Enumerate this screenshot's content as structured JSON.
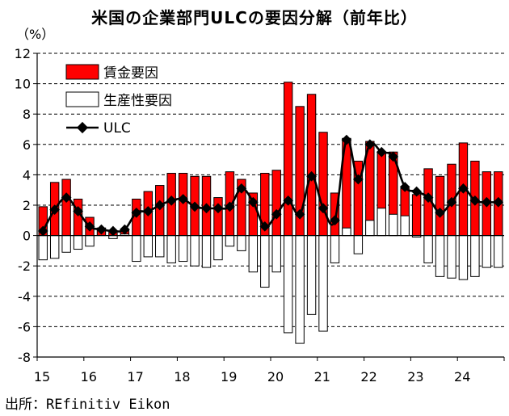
{
  "chart_data": {
    "type": "bar",
    "title": "米国の企業部門ULCの要因分解（前年比）",
    "ylabel": "（%）",
    "ylim": [
      -8,
      12
    ],
    "yticks": [
      -8,
      -6,
      -4,
      -2,
      0,
      2,
      4,
      6,
      8,
      10,
      12
    ],
    "xtick_labels": [
      "15",
      "16",
      "17",
      "18",
      "19",
      "20",
      "21",
      "22",
      "23",
      "24"
    ],
    "source": "出所：REfinitiv Eikon",
    "legend": {
      "wage": "賃金要因",
      "productivity": "生産性要因",
      "ulc": "ULC"
    },
    "colors": {
      "wage": "#ff0000",
      "productivity": "#ffffff",
      "ulc": "#000000",
      "grid": "#000000"
    },
    "categories": [
      "15Q1",
      "15Q2",
      "15Q3",
      "15Q4",
      "16Q1",
      "16Q2",
      "16Q3",
      "16Q4",
      "17Q1",
      "17Q2",
      "17Q3",
      "17Q4",
      "18Q1",
      "18Q2",
      "18Q3",
      "18Q4",
      "19Q1",
      "19Q2",
      "19Q3",
      "19Q4",
      "20Q1",
      "20Q2",
      "20Q3",
      "20Q4",
      "21Q1",
      "21Q2",
      "21Q3",
      "21Q4",
      "22Q1",
      "22Q2",
      "22Q3",
      "22Q4",
      "23Q1",
      "23Q2",
      "23Q3",
      "23Q4",
      "24Q1",
      "24Q2",
      "24Q3",
      "24Q4"
    ],
    "series": [
      {
        "name": "賃金要因",
        "key": "wage",
        "values": [
          1.9,
          3.5,
          3.7,
          2.4,
          1.2,
          0.5,
          0.3,
          0.4,
          2.4,
          2.9,
          3.3,
          4.1,
          4.1,
          3.9,
          3.9,
          2.5,
          4.2,
          3.7,
          2.8,
          4.1,
          4.3,
          10.1,
          8.5,
          9.3,
          6.8,
          2.8,
          6.4,
          4.9,
          6.2,
          5.5,
          5.5,
          3.1,
          2.7,
          4.4,
          3.9,
          4.7,
          6.1,
          4.9,
          4.2,
          4.2
        ]
      },
      {
        "name": "生産性要因",
        "key": "productivity",
        "values": [
          -1.6,
          -1.5,
          -1.1,
          -0.9,
          -0.7,
          0.0,
          -0.2,
          0.1,
          -1.7,
          -1.4,
          -1.4,
          -1.8,
          -1.7,
          -2.0,
          -2.1,
          -1.6,
          -0.7,
          -1.0,
          -2.4,
          -3.4,
          -2.4,
          -6.4,
          -7.1,
          -5.2,
          -6.3,
          -1.8,
          0.5,
          -1.2,
          1.0,
          1.8,
          1.4,
          1.3,
          -0.1,
          -1.8,
          -2.7,
          -2.8,
          -2.9,
          -2.7,
          -2.1,
          -2.1
        ]
      },
      {
        "name": "ULC",
        "key": "ulc",
        "values": [
          0.3,
          1.7,
          2.5,
          1.6,
          0.6,
          0.4,
          0.3,
          0.4,
          1.5,
          1.6,
          2.0,
          2.3,
          2.4,
          1.9,
          1.8,
          1.8,
          1.9,
          3.1,
          2.2,
          0.6,
          1.4,
          2.3,
          1.4,
          3.9,
          1.8,
          1.0,
          6.3,
          3.7,
          6.0,
          5.5,
          5.2,
          3.2,
          2.9,
          2.5,
          1.5,
          2.2,
          3.1,
          2.3,
          2.2,
          2.2
        ]
      }
    ]
  }
}
